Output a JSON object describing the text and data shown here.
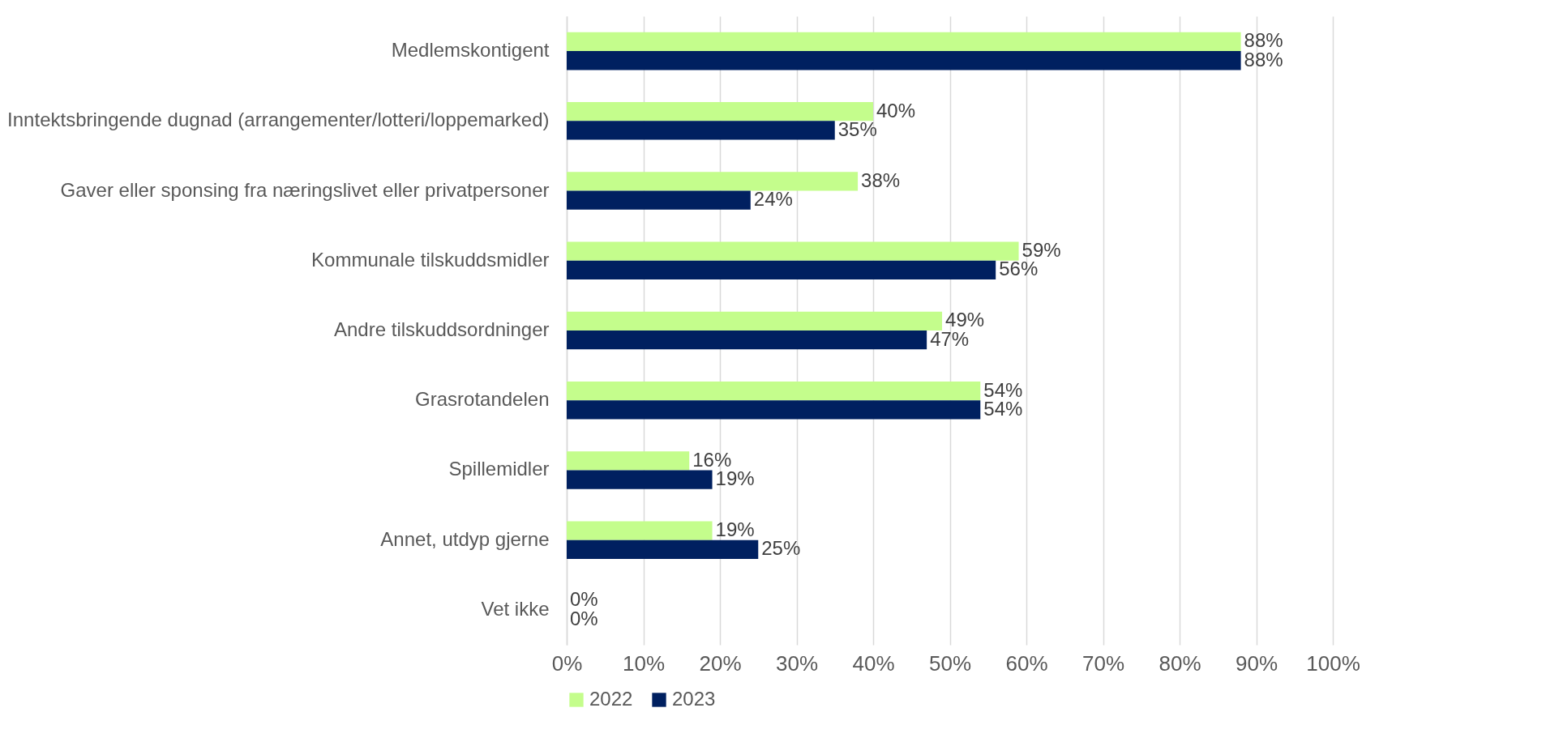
{
  "chart_data": {
    "type": "bar",
    "orientation": "horizontal",
    "categories": [
      "Medlemskontigent",
      "Inntektsbringende dugnad (arrangementer/lotteri/loppemarked)",
      "Gaver eller sponsing fra næringslivet eller privatpersoner",
      "Kommunale tilskuddsmidler",
      "Andre tilskuddsordninger",
      "Grasrotandelen",
      "Spillemidler",
      "Annet, utdyp gjerne",
      "Vet ikke"
    ],
    "series": [
      {
        "name": "2022",
        "color": "#c4fd8c",
        "values": [
          88,
          40,
          38,
          59,
          49,
          54,
          16,
          19,
          0
        ],
        "value_labels": [
          "88%",
          "40%",
          "38%",
          "59%",
          "49%",
          "54%",
          "16%",
          "19%",
          "0%"
        ]
      },
      {
        "name": "2023",
        "color": "#002060",
        "values": [
          88,
          35,
          24,
          56,
          47,
          54,
          19,
          25,
          0
        ],
        "value_labels": [
          "88%",
          "35%",
          "24%",
          "56%",
          "47%",
          "54%",
          "19%",
          "25%",
          "0%"
        ]
      }
    ],
    "xlim": [
      0,
      100
    ],
    "xticks": [
      {
        "value": 0,
        "label": "0%"
      },
      {
        "value": 10,
        "label": "10%"
      },
      {
        "value": 20,
        "label": "20%"
      },
      {
        "value": 30,
        "label": "30%"
      },
      {
        "value": 40,
        "label": "40%"
      },
      {
        "value": 50,
        "label": "50%"
      },
      {
        "value": 60,
        "label": "60%"
      },
      {
        "value": 70,
        "label": "70%"
      },
      {
        "value": 80,
        "label": "80%"
      },
      {
        "value": 90,
        "label": "90%"
      },
      {
        "value": 100,
        "label": "100%"
      }
    ],
    "grid": "x",
    "legend": "bottom"
  }
}
